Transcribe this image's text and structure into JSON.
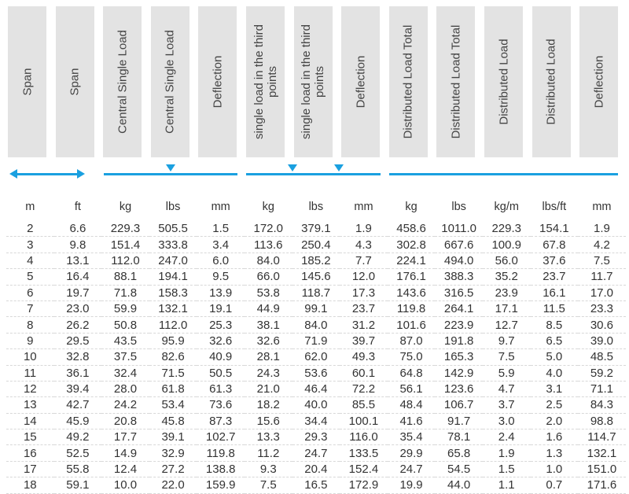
{
  "headers": [
    "Span",
    "Span",
    "Central Single Load",
    "Central Single Load",
    "Deflection",
    "single load in the third points",
    "single load in the third points",
    "Deflection",
    "Distributed Load Total",
    "Distributed Load Total",
    "Distributed Load",
    "Distributed Load",
    "Deflection"
  ],
  "units": [
    "m",
    "ft",
    "kg",
    "lbs",
    "mm",
    "kg",
    "lbs",
    "mm",
    "kg",
    "lbs",
    "kg/m",
    "lbs/ft",
    "mm"
  ],
  "accent_color": "#1aa0e0",
  "rows": [
    [
      "2",
      "6.6",
      "229.3",
      "505.5",
      "1.5",
      "172.0",
      "379.1",
      "1.9",
      "458.6",
      "1011.0",
      "229.3",
      "154.1",
      "1.9"
    ],
    [
      "3",
      "9.8",
      "151.4",
      "333.8",
      "3.4",
      "113.6",
      "250.4",
      "4.3",
      "302.8",
      "667.6",
      "100.9",
      "67.8",
      "4.2"
    ],
    [
      "4",
      "13.1",
      "112.0",
      "247.0",
      "6.0",
      "84.0",
      "185.2",
      "7.7",
      "224.1",
      "494.0",
      "56.0",
      "37.6",
      "7.5"
    ],
    [
      "5",
      "16.4",
      "88.1",
      "194.1",
      "9.5",
      "66.0",
      "145.6",
      "12.0",
      "176.1",
      "388.3",
      "35.2",
      "23.7",
      "11.7"
    ],
    [
      "6",
      "19.7",
      "71.8",
      "158.3",
      "13.9",
      "53.8",
      "118.7",
      "17.3",
      "143.6",
      "316.5",
      "23.9",
      "16.1",
      "17.0"
    ],
    [
      "7",
      "23.0",
      "59.9",
      "132.1",
      "19.1",
      "44.9",
      "99.1",
      "23.7",
      "119.8",
      "264.1",
      "17.1",
      "11.5",
      "23.3"
    ],
    [
      "8",
      "26.2",
      "50.8",
      "112.0",
      "25.3",
      "38.1",
      "84.0",
      "31.2",
      "101.6",
      "223.9",
      "12.7",
      "8.5",
      "30.6"
    ],
    [
      "9",
      "29.5",
      "43.5",
      "95.9",
      "32.6",
      "32.6",
      "71.9",
      "39.7",
      "87.0",
      "191.8",
      "9.7",
      "6.5",
      "39.0"
    ],
    [
      "10",
      "32.8",
      "37.5",
      "82.6",
      "40.9",
      "28.1",
      "62.0",
      "49.3",
      "75.0",
      "165.3",
      "7.5",
      "5.0",
      "48.5"
    ],
    [
      "11",
      "36.1",
      "32.4",
      "71.5",
      "50.5",
      "24.3",
      "53.6",
      "60.1",
      "64.8",
      "142.9",
      "5.9",
      "4.0",
      "59.2"
    ],
    [
      "12",
      "39.4",
      "28.0",
      "61.8",
      "61.3",
      "21.0",
      "46.4",
      "72.2",
      "56.1",
      "123.6",
      "4.7",
      "3.1",
      "71.1"
    ],
    [
      "13",
      "42.7",
      "24.2",
      "53.4",
      "73.6",
      "18.2",
      "40.0",
      "85.5",
      "48.4",
      "106.7",
      "3.7",
      "2.5",
      "84.3"
    ],
    [
      "14",
      "45.9",
      "20.8",
      "45.8",
      "87.3",
      "15.6",
      "34.4",
      "100.1",
      "41.6",
      "91.7",
      "3.0",
      "2.0",
      "98.8"
    ],
    [
      "15",
      "49.2",
      "17.7",
      "39.1",
      "102.7",
      "13.3",
      "29.3",
      "116.0",
      "35.4",
      "78.1",
      "2.4",
      "1.6",
      "114.7"
    ],
    [
      "16",
      "52.5",
      "14.9",
      "32.9",
      "119.8",
      "11.2",
      "24.7",
      "133.5",
      "29.9",
      "65.8",
      "1.9",
      "1.3",
      "132.1"
    ],
    [
      "17",
      "55.8",
      "12.4",
      "27.2",
      "138.8",
      "9.3",
      "20.4",
      "152.4",
      "24.7",
      "54.5",
      "1.5",
      "1.0",
      "151.0"
    ],
    [
      "18",
      "59.1",
      "10.0",
      "22.0",
      "159.9",
      "7.5",
      "16.5",
      "172.9",
      "19.9",
      "44.0",
      "1.1",
      "0.7",
      "171.6"
    ]
  ]
}
